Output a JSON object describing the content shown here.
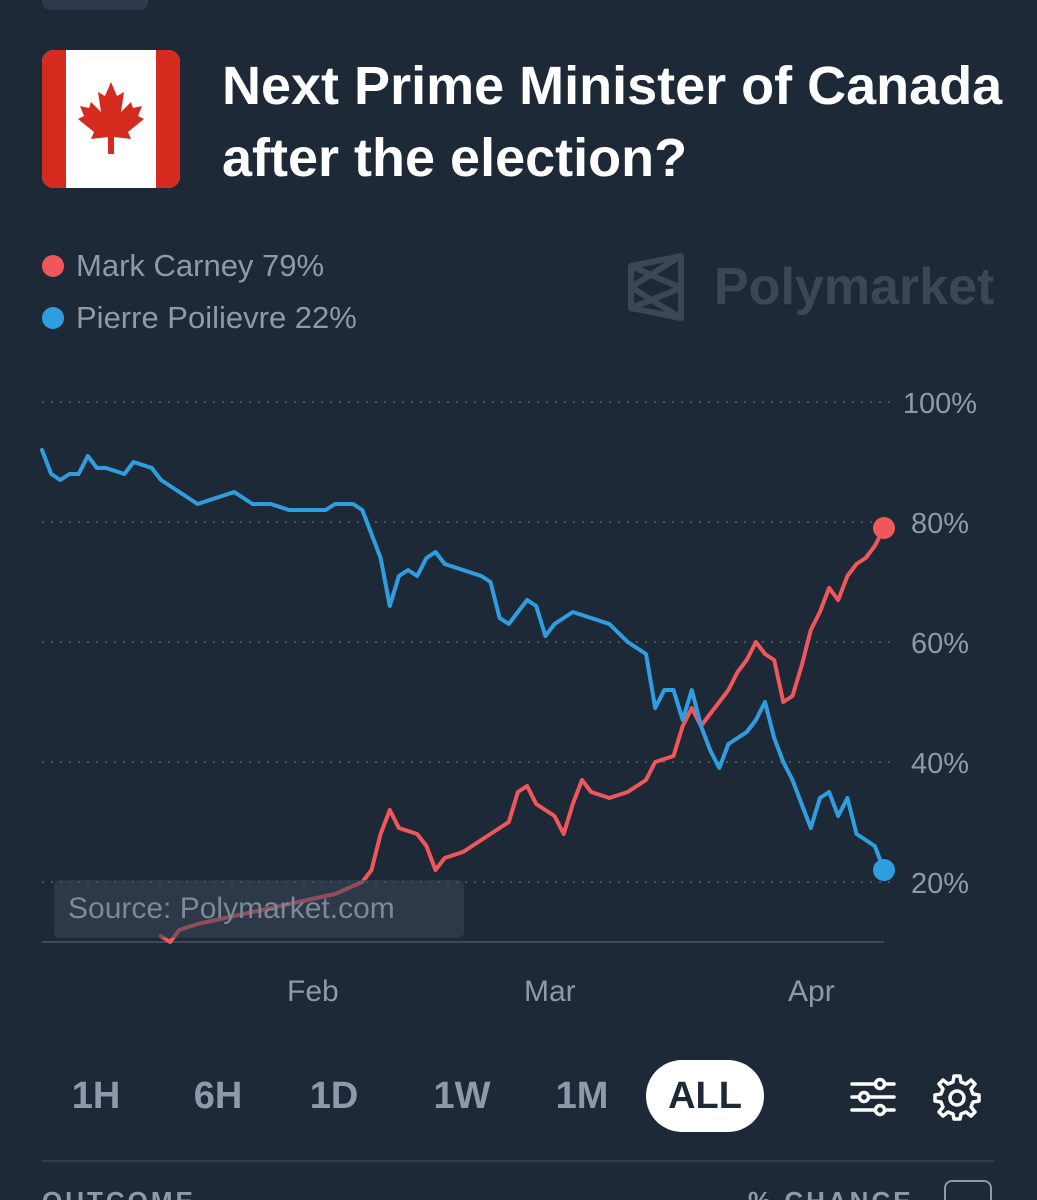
{
  "title": "Next Prime Minister of Canada after the election?",
  "brand": "Polymarket",
  "source_label": "Source: Polymarket.com",
  "legend": [
    {
      "label": "Mark Carney 79%",
      "color": "#f0575a"
    },
    {
      "label": "Pierre Poilievre 22%",
      "color": "#2f9ee0"
    }
  ],
  "time_ranges": [
    {
      "label": "1H",
      "active": false
    },
    {
      "label": "6H",
      "active": false
    },
    {
      "label": "1D",
      "active": false
    },
    {
      "label": "1W",
      "active": false
    },
    {
      "label": "1M",
      "active": false
    },
    {
      "label": "ALL",
      "active": true
    }
  ],
  "icons": {
    "filters": "sliders-icon",
    "settings": "gear-icon",
    "flag": "canada-flag-icon",
    "logo": "polymarket-logo-icon"
  },
  "footer": {
    "left": "OUTCOME",
    "right": "% CHANCE"
  },
  "chart_data": {
    "type": "line",
    "x_tick_labels": [
      "Feb",
      "Mar",
      "Apr"
    ],
    "y_tick_labels": [
      "100%",
      "80%",
      "60%",
      "40%",
      "20%"
    ],
    "y_ticks": [
      100,
      80,
      60,
      40,
      20
    ],
    "ylim": [
      10,
      100
    ],
    "xlim": [
      "2025-01-07",
      "2025-04-09"
    ],
    "grid": true,
    "series": [
      {
        "name": "Mark Carney",
        "color": "#f0575a",
        "points": [
          [
            "2025-01-20",
            11
          ],
          [
            "2025-01-21",
            10
          ],
          [
            "2025-01-22",
            12
          ],
          [
            "2025-01-24",
            13
          ],
          [
            "2025-01-27",
            14
          ],
          [
            "2025-01-30",
            15
          ],
          [
            "2025-02-02",
            16
          ],
          [
            "2025-02-05",
            17
          ],
          [
            "2025-02-08",
            18
          ],
          [
            "2025-02-11",
            20
          ],
          [
            "2025-02-12",
            22
          ],
          [
            "2025-02-13",
            28
          ],
          [
            "2025-02-14",
            32
          ],
          [
            "2025-02-15",
            29
          ],
          [
            "2025-02-17",
            28
          ],
          [
            "2025-02-18",
            26
          ],
          [
            "2025-02-19",
            22
          ],
          [
            "2025-02-20",
            24
          ],
          [
            "2025-02-22",
            25
          ],
          [
            "2025-02-24",
            27
          ],
          [
            "2025-02-26",
            29
          ],
          [
            "2025-02-27",
            30
          ],
          [
            "2025-02-28",
            35
          ],
          [
            "2025-03-01",
            36
          ],
          [
            "2025-03-02",
            33
          ],
          [
            "2025-03-03",
            32
          ],
          [
            "2025-03-04",
            31
          ],
          [
            "2025-03-05",
            28
          ],
          [
            "2025-03-06",
            33
          ],
          [
            "2025-03-07",
            37
          ],
          [
            "2025-03-08",
            35
          ],
          [
            "2025-03-10",
            34
          ],
          [
            "2025-03-12",
            35
          ],
          [
            "2025-03-14",
            37
          ],
          [
            "2025-03-15",
            40
          ],
          [
            "2025-03-17",
            41
          ],
          [
            "2025-03-18",
            46
          ],
          [
            "2025-03-19",
            49
          ],
          [
            "2025-03-20",
            46
          ],
          [
            "2025-03-21",
            48
          ],
          [
            "2025-03-22",
            50
          ],
          [
            "2025-03-23",
            52
          ],
          [
            "2025-03-24",
            55
          ],
          [
            "2025-03-25",
            57
          ],
          [
            "2025-03-26",
            60
          ],
          [
            "2025-03-27",
            58
          ],
          [
            "2025-03-28",
            57
          ],
          [
            "2025-03-29",
            50
          ],
          [
            "2025-03-30",
            51
          ],
          [
            "2025-03-31",
            56
          ],
          [
            "2025-04-01",
            62
          ],
          [
            "2025-04-02",
            65
          ],
          [
            "2025-04-03",
            69
          ],
          [
            "2025-04-04",
            67
          ],
          [
            "2025-04-05",
            71
          ],
          [
            "2025-04-06",
            73
          ],
          [
            "2025-04-07",
            74
          ],
          [
            "2025-04-08",
            76
          ],
          [
            "2025-04-09",
            79
          ]
        ]
      },
      {
        "name": "Pierre Poilievre",
        "color": "#2f9ee0",
        "points": [
          [
            "2025-01-07",
            92
          ],
          [
            "2025-01-08",
            88
          ],
          [
            "2025-01-09",
            87
          ],
          [
            "2025-01-10",
            88
          ],
          [
            "2025-01-11",
            88
          ],
          [
            "2025-01-12",
            91
          ],
          [
            "2025-01-13",
            89
          ],
          [
            "2025-01-14",
            89
          ],
          [
            "2025-01-16",
            88
          ],
          [
            "2025-01-17",
            90
          ],
          [
            "2025-01-19",
            89
          ],
          [
            "2025-01-20",
            87
          ],
          [
            "2025-01-21",
            86
          ],
          [
            "2025-01-22",
            85
          ],
          [
            "2025-01-24",
            83
          ],
          [
            "2025-01-26",
            84
          ],
          [
            "2025-01-28",
            85
          ],
          [
            "2025-01-30",
            83
          ],
          [
            "2025-02-01",
            83
          ],
          [
            "2025-02-03",
            82
          ],
          [
            "2025-02-05",
            82
          ],
          [
            "2025-02-07",
            82
          ],
          [
            "2025-02-08",
            83
          ],
          [
            "2025-02-10",
            83
          ],
          [
            "2025-02-11",
            82
          ],
          [
            "2025-02-12",
            78
          ],
          [
            "2025-02-13",
            74
          ],
          [
            "2025-02-14",
            66
          ],
          [
            "2025-02-15",
            71
          ],
          [
            "2025-02-16",
            72
          ],
          [
            "2025-02-17",
            71
          ],
          [
            "2025-02-18",
            74
          ],
          [
            "2025-02-19",
            75
          ],
          [
            "2025-02-20",
            73
          ],
          [
            "2025-02-22",
            72
          ],
          [
            "2025-02-24",
            71
          ],
          [
            "2025-02-25",
            70
          ],
          [
            "2025-02-26",
            64
          ],
          [
            "2025-02-27",
            63
          ],
          [
            "2025-02-28",
            65
          ],
          [
            "2025-03-01",
            67
          ],
          [
            "2025-03-02",
            66
          ],
          [
            "2025-03-03",
            61
          ],
          [
            "2025-03-04",
            63
          ],
          [
            "2025-03-06",
            65
          ],
          [
            "2025-03-08",
            64
          ],
          [
            "2025-03-10",
            63
          ],
          [
            "2025-03-12",
            60
          ],
          [
            "2025-03-14",
            58
          ],
          [
            "2025-03-15",
            49
          ],
          [
            "2025-03-16",
            52
          ],
          [
            "2025-03-17",
            52
          ],
          [
            "2025-03-18",
            47
          ],
          [
            "2025-03-19",
            52
          ],
          [
            "2025-03-20",
            46
          ],
          [
            "2025-03-21",
            42
          ],
          [
            "2025-03-22",
            39
          ],
          [
            "2025-03-23",
            43
          ],
          [
            "2025-03-24",
            44
          ],
          [
            "2025-03-25",
            45
          ],
          [
            "2025-03-26",
            47
          ],
          [
            "2025-03-27",
            50
          ],
          [
            "2025-03-28",
            44
          ],
          [
            "2025-03-29",
            40
          ],
          [
            "2025-03-30",
            37
          ],
          [
            "2025-03-31",
            33
          ],
          [
            "2025-04-01",
            29
          ],
          [
            "2025-04-02",
            34
          ],
          [
            "2025-04-03",
            35
          ],
          [
            "2025-04-04",
            31
          ],
          [
            "2025-04-05",
            34
          ],
          [
            "2025-04-06",
            28
          ],
          [
            "2025-04-07",
            27
          ],
          [
            "2025-04-08",
            26
          ],
          [
            "2025-04-09",
            22
          ]
        ]
      }
    ]
  }
}
